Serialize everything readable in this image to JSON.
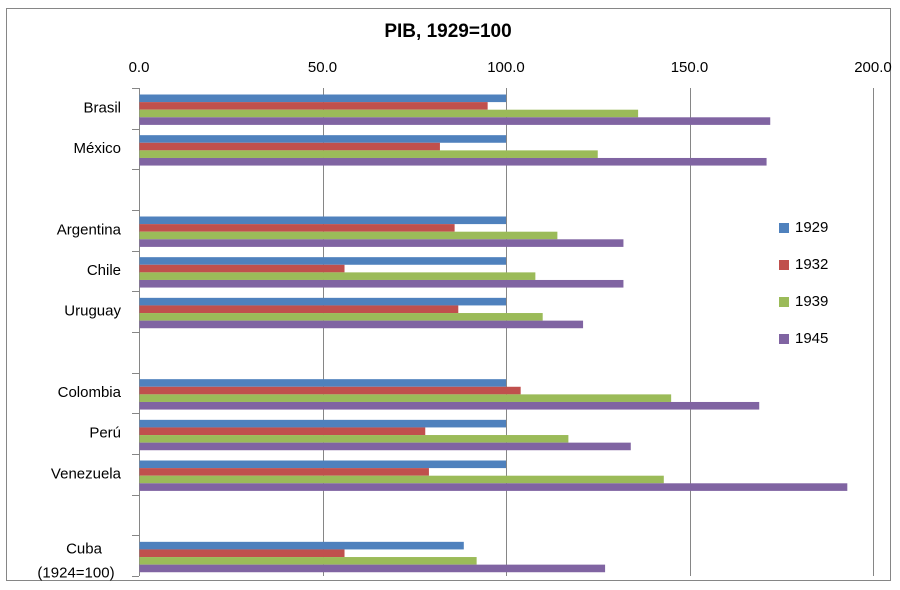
{
  "chart_data": {
    "type": "bar",
    "orientation": "horizontal",
    "title": "PIB, 1929=100",
    "xlabel": "",
    "ylabel": "",
    "xlim": [
      0,
      200
    ],
    "x_ticks": [
      "0.0",
      "50.0",
      "100.0",
      "150.0",
      "200.0"
    ],
    "x_axis_position": "top",
    "grid": true,
    "legend_position": "right",
    "categories": [
      {
        "label": "Brasil"
      },
      {
        "label": "México"
      },
      {
        "label": ""
      },
      {
        "label": "Argentina"
      },
      {
        "label": "Chile"
      },
      {
        "label": "Uruguay"
      },
      {
        "label": ""
      },
      {
        "label": "Colombia"
      },
      {
        "label": "Perú"
      },
      {
        "label": "Venezuela"
      },
      {
        "label": ""
      },
      {
        "label": "Cuba",
        "label2": "(1924=100)"
      }
    ],
    "series": [
      {
        "name": "1929",
        "color": "#4F81BD",
        "values": [
          100,
          100,
          null,
          100,
          100,
          100,
          null,
          100,
          100,
          100,
          null,
          88.5
        ]
      },
      {
        "name": "1932",
        "color": "#C0504D",
        "values": [
          95,
          82,
          null,
          86,
          56,
          87,
          null,
          104,
          78,
          79,
          null,
          56
        ]
      },
      {
        "name": "1939",
        "color": "#9BBB59",
        "values": [
          136,
          125,
          null,
          114,
          108,
          110,
          null,
          145,
          117,
          143,
          null,
          92
        ]
      },
      {
        "name": "1945",
        "color": "#8064A2",
        "values": [
          172,
          171,
          null,
          132,
          132,
          121,
          null,
          169,
          134,
          193,
          null,
          127
        ]
      }
    ]
  }
}
